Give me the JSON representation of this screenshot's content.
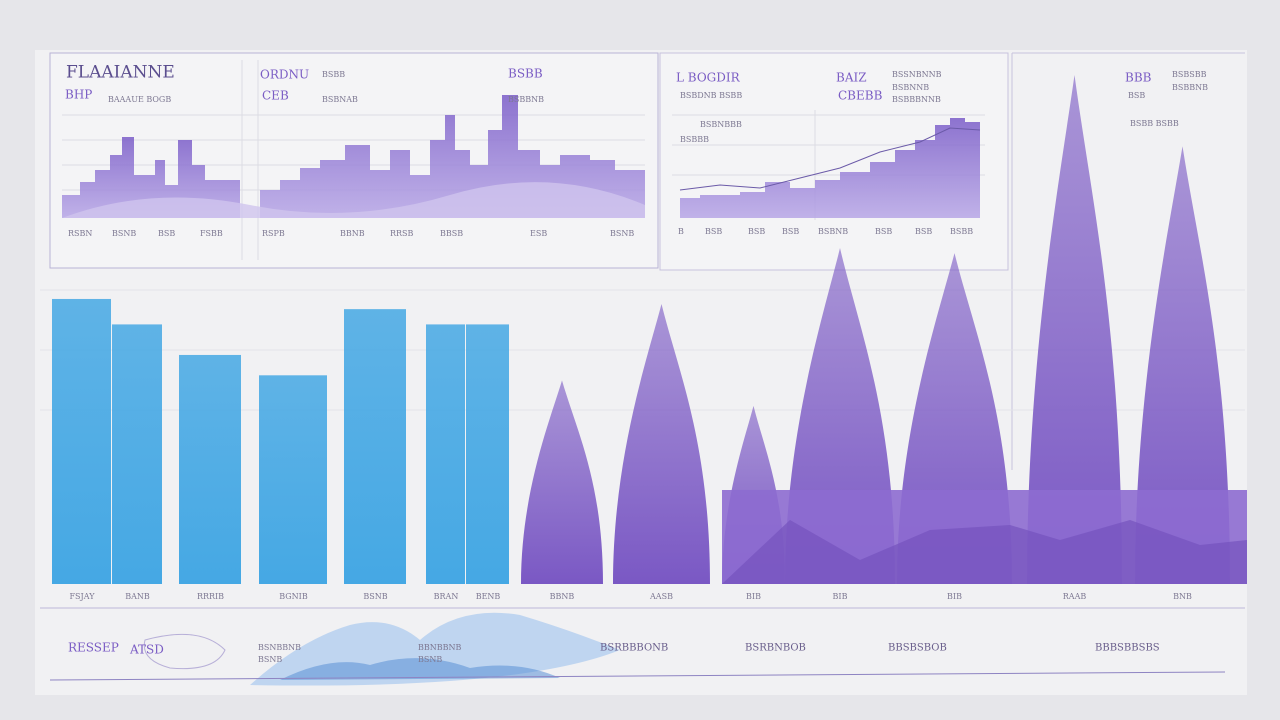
{
  "panels": [
    {
      "texts": [
        "FLAAIANNE",
        "BHP",
        "BAAAUE BOGB",
        "ORDNU",
        "BSBB",
        "CEB",
        "BSBNAB",
        "BSBB",
        "BSBBNB"
      ],
      "labels": [
        "RSBN",
        "BSNB",
        "BSB",
        "FSBB",
        "RSPB",
        "BBNB",
        "RRSB",
        "BBSB",
        "ESB",
        "BSNB"
      ]
    },
    {
      "texts": [
        "L BOGDIR",
        "BAIZ",
        "BSSNBNNB",
        "BSBNNB",
        "CBEBB",
        "BSBBBNNB",
        "BSBDNB BSBB",
        "BSBNBBB",
        "BSBBB"
      ],
      "labels": [
        "B",
        "BSB",
        "BSB",
        "BSB",
        "BSBNB",
        "BSB",
        "BSB",
        "BSBB"
      ]
    },
    {
      "texts": [
        "BBB",
        "BSBSBB",
        "BSBBNB",
        "BSB",
        "BSBB BSBB"
      ]
    }
  ],
  "chart_data": [
    {
      "type": "bar",
      "color": "#45a8e4",
      "ylim": [
        0,
        100
      ],
      "categories": [
        "FSJAY",
        "BANB",
        "RRRIB",
        "BGNIB",
        "BSNB",
        "BRAN",
        "BENB"
      ],
      "values": [
        56,
        51,
        45,
        41,
        54,
        51,
        51
      ]
    },
    {
      "type": "peak",
      "color": "#7a58c4",
      "ylim": [
        0,
        100
      ],
      "categories": [
        "BBNB",
        "AASB",
        "BIB",
        "BIB",
        "BIB",
        "RAAB",
        "BNB"
      ],
      "values": [
        40,
        55,
        35,
        66,
        65,
        100,
        86
      ]
    }
  ],
  "footer": {
    "texts": [
      "RESSEP",
      "ATSD",
      "BSNBBNB",
      "BSNB",
      "BBNBBNB",
      "BSNB",
      "BSRBBBONB",
      "BSRBNBOB",
      "BBSBSBOB",
      "BBBSBBSBS"
    ]
  }
}
